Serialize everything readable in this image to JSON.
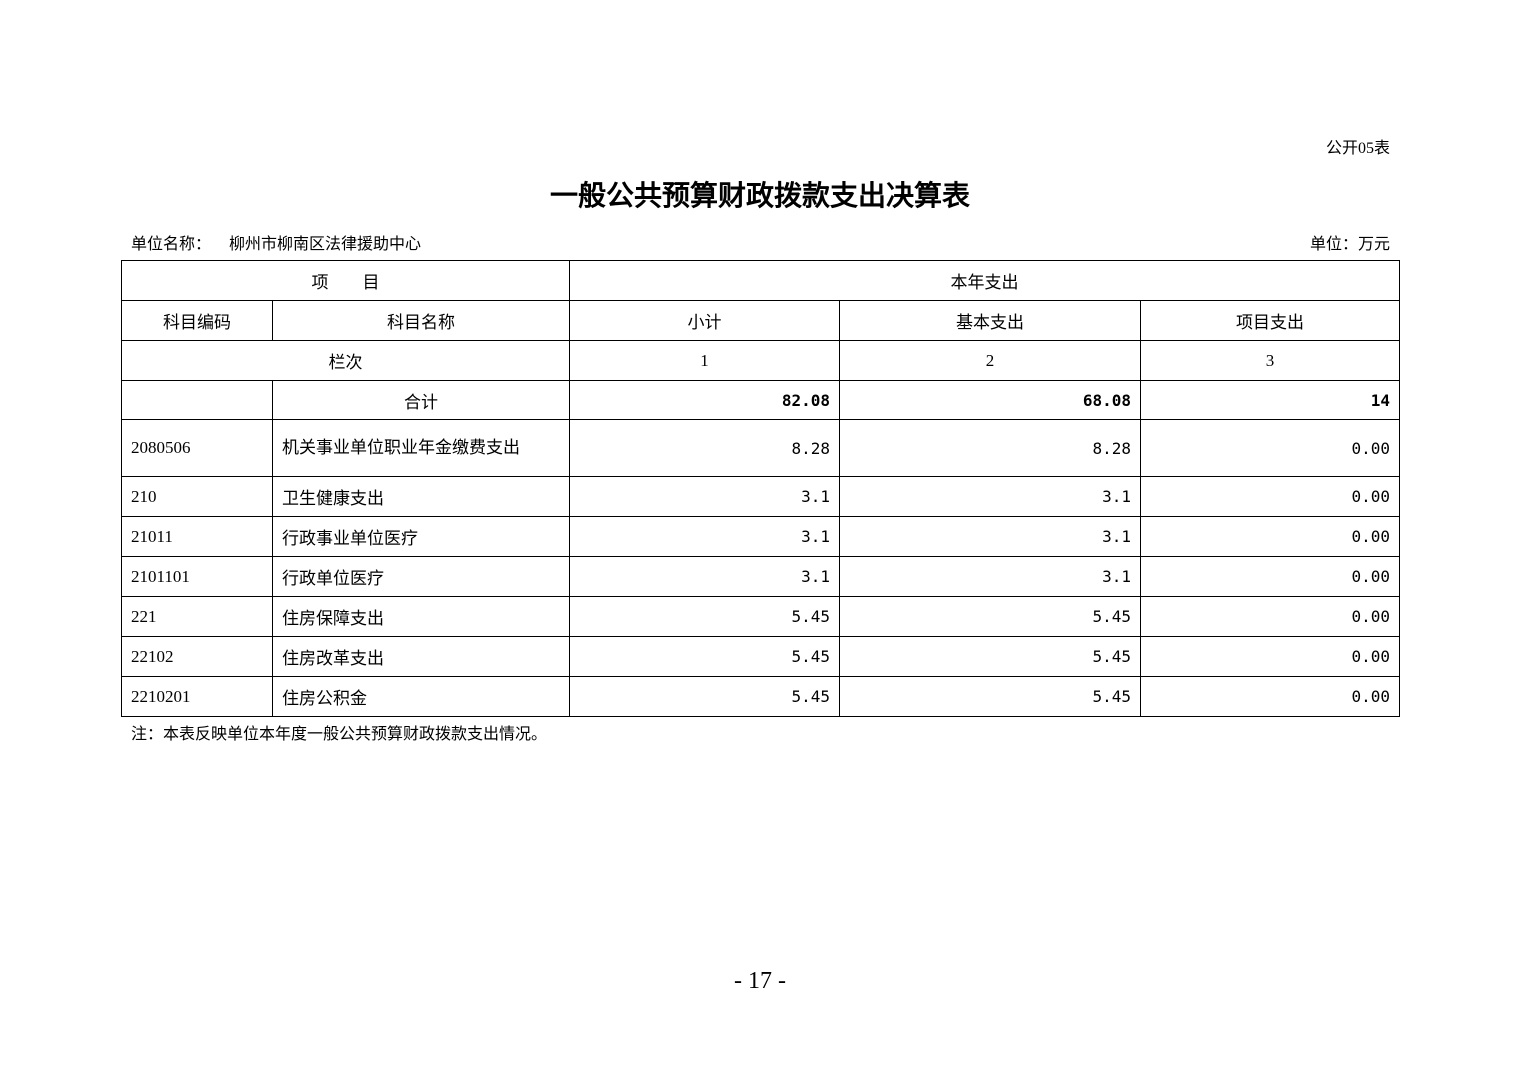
{
  "form_no": "公开05表",
  "title": "一般公共预算财政拨款支出决算表",
  "unit_name_label": "单位名称：",
  "unit_name": "柳州市柳南区法律援助中心",
  "unit": "单位：万元",
  "table": {
    "header_item": "项　　目",
    "header_current_year": "本年支出",
    "col_code": "科目编码",
    "col_name": "科目名称",
    "col_subtotal": "小计",
    "col_basic": "基本支出",
    "col_project": "项目支出",
    "col_index_label": "栏次",
    "col_index": [
      "1",
      "2",
      "3"
    ],
    "total": {
      "name": "合计",
      "subtotal": "82.08",
      "basic": "68.08",
      "project": "14"
    },
    "rows": [
      {
        "code": "2080506",
        "name": "机关事业单位职业年金缴费支出",
        "subtotal": "8.28",
        "basic": "8.28",
        "project": "0.00"
      },
      {
        "code": "210",
        "name": "卫生健康支出",
        "subtotal": "3.1",
        "basic": "3.1",
        "project": "0.00"
      },
      {
        "code": "21011",
        "name": "行政事业单位医疗",
        "subtotal": "3.1",
        "basic": "3.1",
        "project": "0.00"
      },
      {
        "code": "2101101",
        "name": "行政单位医疗",
        "subtotal": "3.1",
        "basic": "3.1",
        "project": "0.00"
      },
      {
        "code": "221",
        "name": "住房保障支出",
        "subtotal": "5.45",
        "basic": "5.45",
        "project": "0.00"
      },
      {
        "code": "22102",
        "name": "住房改革支出",
        "subtotal": "5.45",
        "basic": "5.45",
        "project": "0.00"
      },
      {
        "code": "2210201",
        "name": "住房公积金",
        "subtotal": "5.45",
        "basic": "5.45",
        "project": "0.00"
      }
    ]
  },
  "note": "注：本表反映单位本年度一般公共预算财政拨款支出情况。",
  "page_number": "- 17 -"
}
